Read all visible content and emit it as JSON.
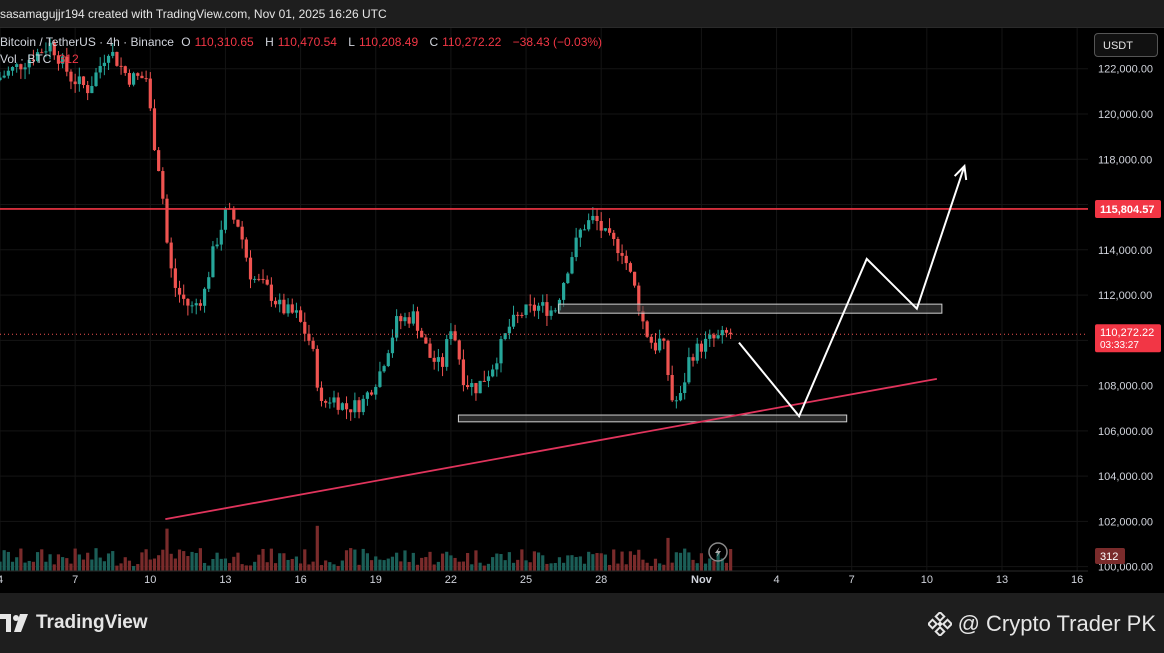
{
  "header": {
    "created_text": "sasamagujjr194 created with TradingView.com, Nov 01, 2025 16:26 UTC"
  },
  "legend": {
    "symbol": "Bitcoin / TetherUS · 4h · Binance",
    "o_label": "O",
    "o_value": "110,310.65",
    "h_label": "H",
    "h_value": "110,470.54",
    "l_label": "L",
    "l_value": "110,208.49",
    "c_label": "C",
    "c_value": "110,272.22",
    "change": "−38.43 (−0.03%)",
    "vol_label": "Vol · BTC",
    "vol_value": "312"
  },
  "currency_button": "USDT",
  "colors": {
    "up": "#26a69a",
    "down": "#ef5350",
    "level_line": "#f23645",
    "trend_line": "#e0345c",
    "zone_border": "#d0d0d0",
    "arrow": "#ffffff"
  },
  "chart_data": {
    "type": "candlestick",
    "symbol": "Bitcoin / TetherUS",
    "interval": "4h",
    "exchange": "Binance",
    "ylim": [
      99500,
      123800
    ],
    "y_ticks": [
      100000,
      102000,
      104000,
      106000,
      108000,
      110000,
      112000,
      114000,
      116000,
      118000,
      120000,
      122000
    ],
    "x_range_days": [
      4.0,
      17.0
    ],
    "x_ticks": [
      {
        "day": 4,
        "label": "4"
      },
      {
        "day": 7,
        "label": "7"
      },
      {
        "day": 10,
        "label": "10"
      },
      {
        "day": 13,
        "label": "13"
      },
      {
        "day": 16,
        "label": "16"
      },
      {
        "day": 19,
        "label": "19"
      },
      {
        "day": 22,
        "label": "22"
      },
      {
        "day": 25,
        "label": "25"
      },
      {
        "day": 28,
        "label": "28"
      },
      {
        "day": 32,
        "label": "Nov"
      },
      {
        "day": 35,
        "label": "4"
      },
      {
        "day": 38,
        "label": "7"
      },
      {
        "day": 41,
        "label": "10"
      },
      {
        "day": 44,
        "label": "13"
      },
      {
        "day": 47,
        "label": "16"
      }
    ],
    "price_path": [
      {
        "day": 4.0,
        "p": 121500
      },
      {
        "day": 5.0,
        "p": 122200
      },
      {
        "day": 6.2,
        "p": 123100
      },
      {
        "day": 7.0,
        "p": 121600
      },
      {
        "day": 7.7,
        "p": 121100
      },
      {
        "day": 8.5,
        "p": 122900
      },
      {
        "day": 9.3,
        "p": 121600
      },
      {
        "day": 10.0,
        "p": 121600
      },
      {
        "day": 10.3,
        "p": 118900
      },
      {
        "day": 10.6,
        "p": 117100
      },
      {
        "day": 10.9,
        "p": 113500
      },
      {
        "day": 11.2,
        "p": 112200
      },
      {
        "day": 11.8,
        "p": 111400
      },
      {
        "day": 12.3,
        "p": 112000
      },
      {
        "day": 12.7,
        "p": 114000
      },
      {
        "day": 13.2,
        "p": 115700
      },
      {
        "day": 13.7,
        "p": 115100
      },
      {
        "day": 14.2,
        "p": 112800
      },
      {
        "day": 14.8,
        "p": 112300
      },
      {
        "day": 15.4,
        "p": 111400
      },
      {
        "day": 16.0,
        "p": 111100
      },
      {
        "day": 16.6,
        "p": 109800
      },
      {
        "day": 17.0,
        "p": 107100
      },
      {
        "day": 17.4,
        "p": 107500
      },
      {
        "day": 18.0,
        "p": 107000
      },
      {
        "day": 18.6,
        "p": 107200
      },
      {
        "day": 19.3,
        "p": 108500
      },
      {
        "day": 20.0,
        "p": 110800
      },
      {
        "day": 20.7,
        "p": 111100
      },
      {
        "day": 21.3,
        "p": 109300
      },
      {
        "day": 21.8,
        "p": 108800
      },
      {
        "day": 22.2,
        "p": 110800
      },
      {
        "day": 22.7,
        "p": 108200
      },
      {
        "day": 23.2,
        "p": 107900
      },
      {
        "day": 23.8,
        "p": 108800
      },
      {
        "day": 24.5,
        "p": 110600
      },
      {
        "day": 25.0,
        "p": 111200
      },
      {
        "day": 25.7,
        "p": 111500
      },
      {
        "day": 26.3,
        "p": 111300
      },
      {
        "day": 26.9,
        "p": 113500
      },
      {
        "day": 27.4,
        "p": 115000
      },
      {
        "day": 27.9,
        "p": 115400
      },
      {
        "day": 28.4,
        "p": 114500
      },
      {
        "day": 29.0,
        "p": 114000
      },
      {
        "day": 29.5,
        "p": 112300
      },
      {
        "day": 29.9,
        "p": 110500
      },
      {
        "day": 30.3,
        "p": 109700
      },
      {
        "day": 30.6,
        "p": 110100
      },
      {
        "day": 31.0,
        "p": 107400
      },
      {
        "day": 31.3,
        "p": 107300
      },
      {
        "day": 31.7,
        "p": 109300
      },
      {
        "day": 32.1,
        "p": 109700
      },
      {
        "day": 32.5,
        "p": 110000
      },
      {
        "day": 32.9,
        "p": 110100
      },
      {
        "day": 33.2,
        "p": 110270
      }
    ],
    "last_price": "110,272.22",
    "countdown": "03:33:27",
    "resistance_level": {
      "price": 115804.57,
      "label": "115,804.57"
    },
    "last_volume": "312",
    "zones": [
      {
        "day_from": 26.3,
        "day_to": 41.6,
        "price_low": 111200,
        "price_high": 111600
      },
      {
        "day_from": 22.3,
        "day_to": 37.8,
        "price_low": 106400,
        "price_high": 106700
      }
    ],
    "trend_line": [
      {
        "day": 10.6,
        "price": 102100
      },
      {
        "day": 41.4,
        "price": 108300
      }
    ],
    "projection_path": [
      {
        "day": 33.5,
        "price": 109900
      },
      {
        "day": 35.9,
        "price": 106650
      },
      {
        "day": 38.6,
        "price": 113600
      },
      {
        "day": 40.6,
        "price": 111400
      },
      {
        "day": 42.5,
        "price": 117700
      }
    ]
  },
  "branding": {
    "logo_text": "TradingView",
    "watermark": "@ Crypto Trader PK"
  }
}
